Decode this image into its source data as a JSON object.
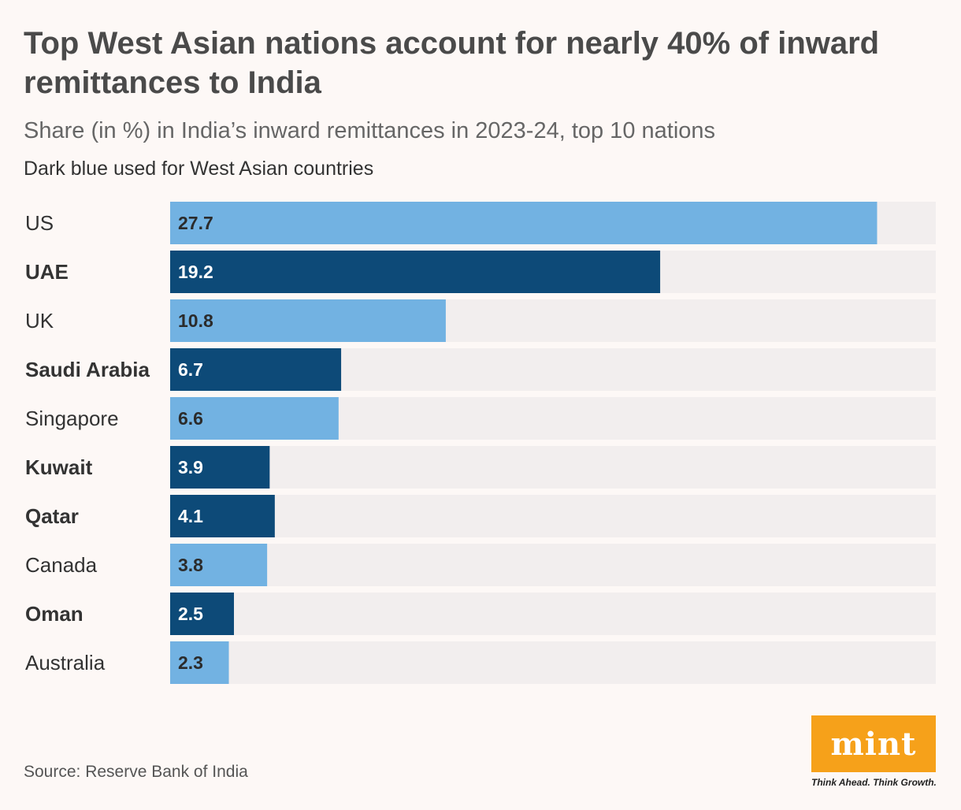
{
  "header": {
    "title": "Top West Asian nations account for nearly 40% of inward remittances to India",
    "subtitle": "Share (in %) in India’s inward remittances in 2023-24, top 10 nations",
    "note": "Dark blue used for West Asian countries"
  },
  "footer": {
    "source": "Source: Reserve Bank of India",
    "logo_text": "mint",
    "tagline": "Think Ahead. Think Growth."
  },
  "colors": {
    "west_asian": "#0d4a78",
    "other": "#72b2e2",
    "track": "#f2eeee",
    "label_dark_bg": "#ffffff",
    "label_light_bg": "#2b2b2b"
  },
  "chart_data": {
    "type": "bar",
    "orientation": "horizontal",
    "title": "Top West Asian nations account for nearly 40% of inward remittances to India",
    "subtitle": "Share (in %) in India’s inward remittances in 2023-24, top 10 nations",
    "xlabel": "",
    "ylabel": "",
    "xlim": [
      0,
      30
    ],
    "categories": [
      "US",
      "UAE",
      "UK",
      "Saudi Arabia",
      "Singapore",
      "Kuwait",
      "Qatar",
      "Canada",
      "Oman",
      "Australia"
    ],
    "values": [
      27.7,
      19.2,
      10.8,
      6.7,
      6.6,
      3.9,
      4.1,
      3.8,
      2.5,
      2.3
    ],
    "value_labels": [
      "27.7",
      "19.2",
      "10.8",
      "6.7",
      "6.6",
      "3.9",
      "4.1",
      "3.8",
      "2.5",
      "2.3"
    ],
    "west_asian": [
      false,
      true,
      false,
      true,
      false,
      true,
      true,
      false,
      true,
      false
    ]
  }
}
